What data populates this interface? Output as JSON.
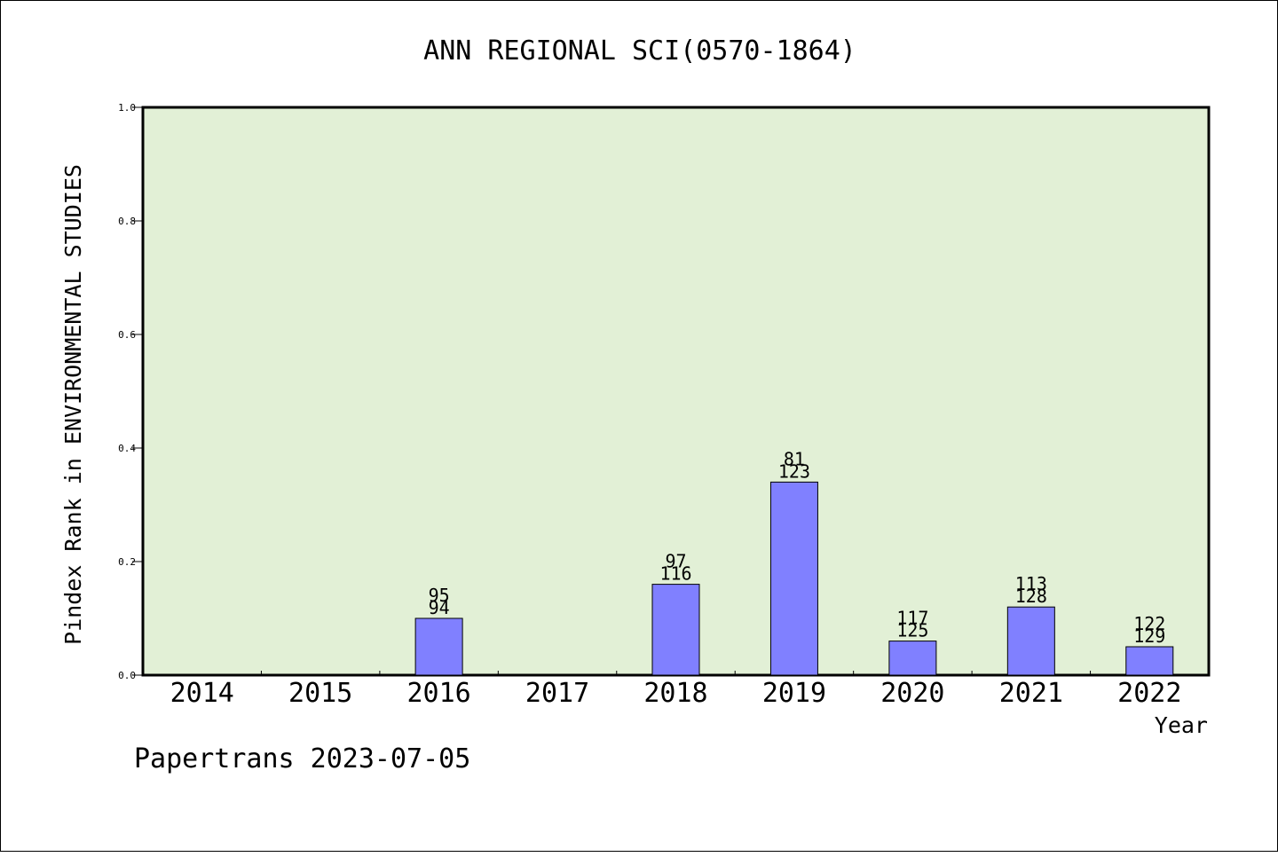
{
  "chart_data": {
    "type": "bar",
    "title": "ANN REGIONAL SCI(0570-1864)",
    "xlabel": "Year",
    "ylabel": "Pindex Rank in ENVIRONMENTAL STUDIES",
    "ylim": [
      0,
      1.0
    ],
    "yticks": [
      "0.0",
      "0.2",
      "0.4",
      "0.6",
      "0.8",
      "1.0"
    ],
    "categories": [
      "2014",
      "2015",
      "2016",
      "2017",
      "2018",
      "2019",
      "2020",
      "2021",
      "2022"
    ],
    "values": [
      null,
      null,
      0.1,
      null,
      0.16,
      0.34,
      0.06,
      0.12,
      0.05
    ],
    "label_top": [
      "",
      "",
      "95",
      "",
      "97",
      "81",
      "117",
      "113",
      "122"
    ],
    "label_bottom": [
      "",
      "",
      "94",
      "",
      "116",
      "123",
      "125",
      "128",
      "129"
    ],
    "grid": false,
    "colors": {
      "plot_background": "#e2f0d6",
      "bar_fill": "#8080ff",
      "bar_stroke": "#000000"
    }
  },
  "footer": "Papertrans 2023-07-05"
}
